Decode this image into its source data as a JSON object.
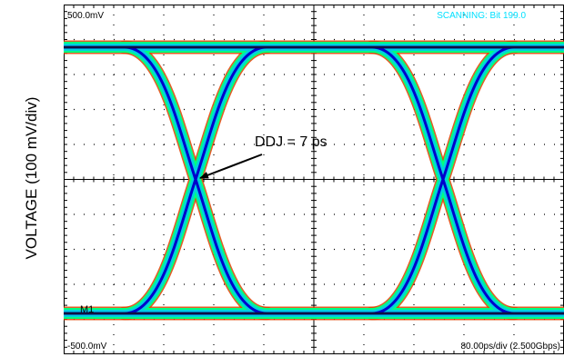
{
  "y_axis_label": "VOLTAGE (100 mV/div)",
  "scope": {
    "top_scale": "500.0mV",
    "bottom_scale": "-500.0mV",
    "status": "SCANNING: Bit 199.0",
    "timebase": "80.00ps/div (2.500Gbps)",
    "marker": "M1",
    "annotation": "DDJ = 7 ps"
  },
  "colors": {
    "trace_core": "#0000cc",
    "trace_mid": "#00d0e0",
    "trace_outer": "#00ff80",
    "trace_fringe": "#e04000",
    "grid": "#000000",
    "status_text": "#00e0ff"
  }
}
